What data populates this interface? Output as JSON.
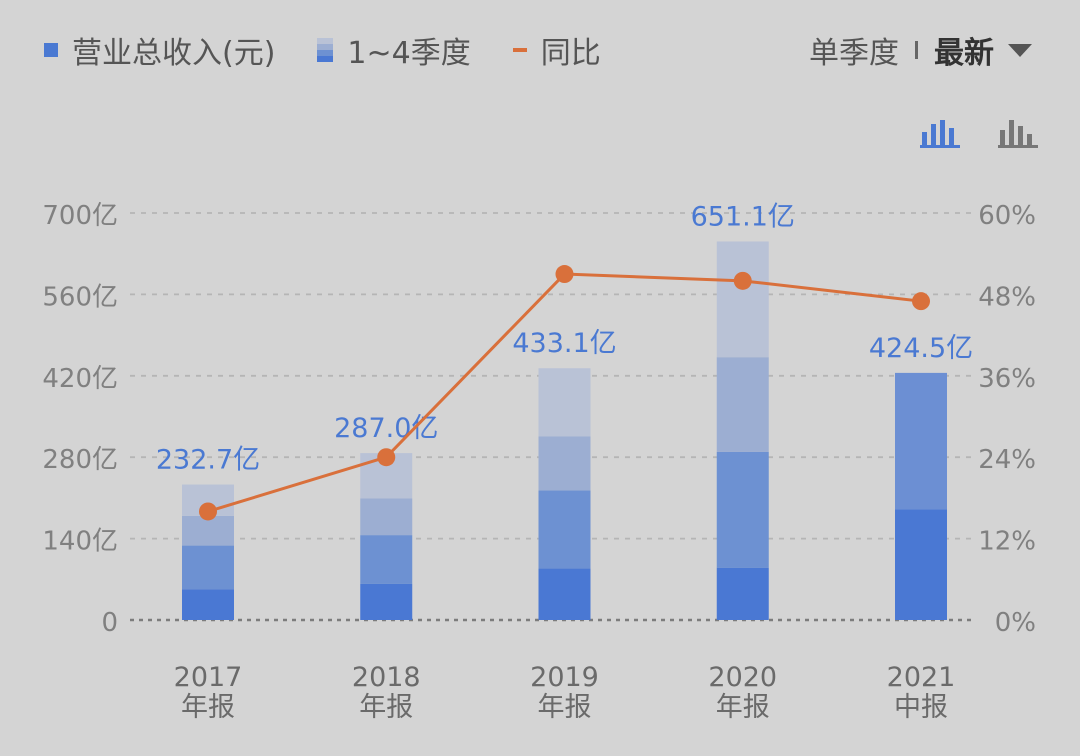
{
  "legend": {
    "revenue": "营业总收入(元)",
    "quarters": "1~4季度",
    "yoy": "同比"
  },
  "period": {
    "mode": "单季度",
    "current": "最新"
  },
  "chart_types": [
    "stacked-bar-icon",
    "bar-icon"
  ],
  "chart_data": {
    "type": "bar",
    "stacked": true,
    "categories": [
      [
        "2017",
        "年报"
      ],
      [
        "2018",
        "年报"
      ],
      [
        "2019",
        "年报"
      ],
      [
        "2020",
        "年报"
      ],
      [
        "2021",
        "中报"
      ]
    ],
    "totals": [
      232.7,
      287.0,
      433.1,
      651.1,
      424.5
    ],
    "total_labels": [
      "232.7亿",
      "287.0亿",
      "433.1亿",
      "651.1亿",
      "424.5亿"
    ],
    "quarters": [
      [
        53,
        75,
        51,
        54
      ],
      [
        62,
        84,
        63,
        78
      ],
      [
        89,
        134,
        93,
        117
      ],
      [
        90,
        199,
        163,
        199
      ],
      [
        190,
        235
      ]
    ],
    "yoy": [
      16,
      24,
      51,
      50,
      47
    ],
    "y_left": {
      "ticks": [
        0,
        140,
        280,
        420,
        560,
        700
      ],
      "labels": [
        "0",
        "140亿",
        "280亿",
        "420亿",
        "560亿",
        "700亿"
      ],
      "range": [
        0,
        700
      ]
    },
    "y_right": {
      "ticks": [
        0,
        12,
        24,
        36,
        48,
        60
      ],
      "labels": [
        "0%",
        "12%",
        "24%",
        "36%",
        "48%",
        "60%"
      ],
      "range": [
        0,
        60
      ]
    },
    "colors": {
      "quarters": [
        "#4a78d3",
        "#6d91d2",
        "#9caed2",
        "#b9c2d6"
      ],
      "quarters_partial": [
        "#4a78d3",
        "#6c8fd3"
      ],
      "line": "#d9703b",
      "label": "#4a79d2",
      "axis": "#808080",
      "grid": "#b5b5b5"
    },
    "grid": true,
    "legend_position": "top-left"
  }
}
